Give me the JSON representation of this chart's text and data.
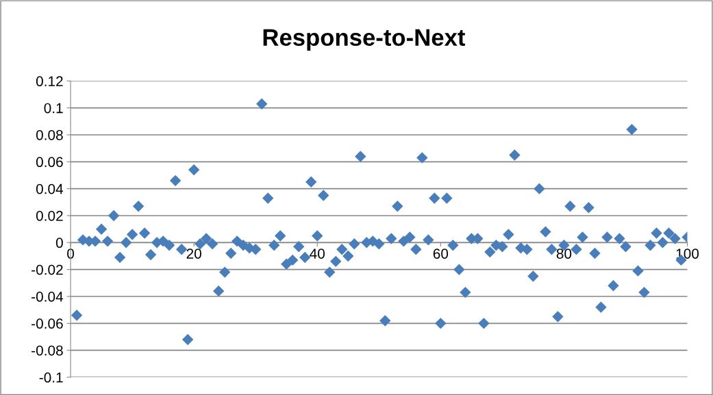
{
  "chart_data": {
    "type": "scatter",
    "title": "Response-to-Next",
    "x": [
      1,
      2,
      3,
      4,
      5,
      6,
      7,
      8,
      9,
      10,
      11,
      12,
      13,
      14,
      15,
      16,
      17,
      18,
      19,
      20,
      21,
      22,
      23,
      24,
      25,
      26,
      27,
      28,
      29,
      30,
      31,
      32,
      33,
      34,
      35,
      36,
      37,
      38,
      39,
      40,
      41,
      42,
      43,
      44,
      45,
      46,
      47,
      48,
      49,
      50,
      51,
      52,
      53,
      54,
      55,
      56,
      57,
      58,
      59,
      60,
      61,
      62,
      63,
      64,
      65,
      66,
      67,
      68,
      69,
      70,
      71,
      72,
      73,
      74,
      75,
      76,
      77,
      78,
      79,
      80,
      81,
      82,
      83,
      84,
      85,
      86,
      87,
      88,
      89,
      90,
      91,
      92,
      93,
      94,
      95,
      96,
      97,
      98,
      99,
      100
    ],
    "series": [
      {
        "color": "#4a7ebb",
        "values": [
          -0.054,
          0.002,
          0.001,
          0.001,
          0.01,
          0.001,
          0.02,
          -0.011,
          0.0,
          0.006,
          0.027,
          0.007,
          -0.009,
          0.0,
          0.001,
          -0.002,
          0.046,
          -0.005,
          -0.072,
          0.054,
          -0.001,
          0.003,
          -0.001,
          -0.036,
          -0.022,
          -0.008,
          0.001,
          -0.002,
          -0.004,
          -0.005,
          0.103,
          0.033,
          -0.002,
          0.005,
          -0.016,
          -0.013,
          -0.003,
          -0.011,
          0.045,
          0.005,
          0.035,
          -0.022,
          -0.014,
          -0.005,
          -0.01,
          -0.001,
          0.064,
          0.0,
          0.001,
          -0.001,
          -0.058,
          0.003,
          0.027,
          0.001,
          0.004,
          -0.005,
          0.063,
          0.002,
          0.033,
          -0.06,
          0.033,
          -0.002,
          -0.02,
          -0.037,
          0.003,
          0.003,
          -0.06,
          -0.007,
          -0.002,
          -0.003,
          0.006,
          0.065,
          -0.004,
          -0.005,
          -0.025,
          0.04,
          0.008,
          -0.005,
          -0.055,
          -0.002,
          0.027,
          -0.005,
          0.004,
          0.026,
          -0.008,
          -0.048,
          0.004,
          -0.032,
          0.003,
          -0.003,
          0.084,
          -0.021,
          -0.037,
          -0.002,
          0.007,
          0.0,
          0.007,
          0.003,
          -0.013,
          0.004
        ]
      }
    ],
    "xlim": [
      0,
      100
    ],
    "xticks": [
      0,
      20,
      40,
      60,
      80,
      100
    ],
    "ylim": [
      -0.1,
      0.12
    ],
    "yticks": [
      -0.1,
      -0.08,
      -0.06,
      -0.04,
      -0.02,
      0,
      0.02,
      0.04,
      0.06,
      0.08,
      0.1,
      0.12
    ],
    "grid": "y",
    "legend": false,
    "marker": "diamond"
  }
}
